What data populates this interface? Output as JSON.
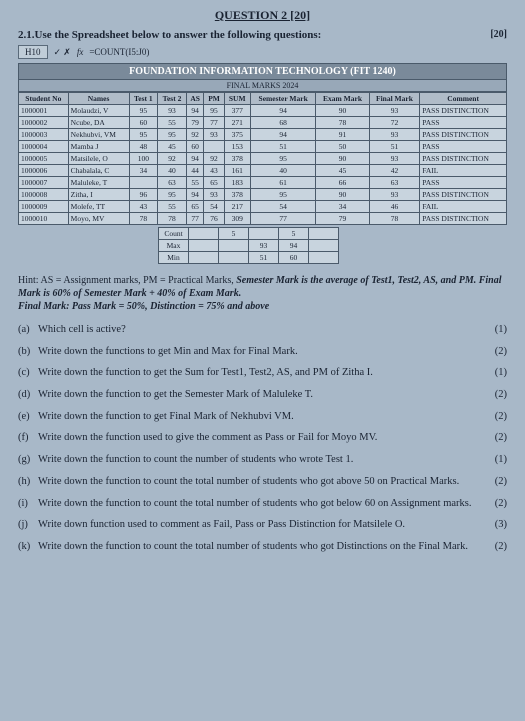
{
  "header": {
    "title": "QUESTION 2 [20]",
    "sub": "2.1.Use the Spreadsheet below to answer the following questions:",
    "marks": "[20]"
  },
  "formula_bar": {
    "cell": "H10",
    "fx": "fx",
    "formula": "=COUNT(I5:J0)"
  },
  "sheet": {
    "title": "FOUNDATION INFORMATION TECHNOLOGY (FIT 1240)",
    "subtitle": "FINAL MARKS 2024",
    "columns": [
      "Student No",
      "Names",
      "Test 1",
      "Test 2",
      "AS",
      "PM",
      "SUM",
      "Semester Mark",
      "Exam Mark",
      "Final Mark",
      "Comment"
    ],
    "rows": [
      [
        "1000001",
        "Molaudzi, V",
        "95",
        "93",
        "94",
        "95",
        "377",
        "94",
        "90",
        "93",
        "PASS DISTINCTION"
      ],
      [
        "1000002",
        "Ncube, DA",
        "60",
        "55",
        "79",
        "77",
        "271",
        "68",
        "78",
        "72",
        "PASS"
      ],
      [
        "1000003",
        "Nekhubvi, VM",
        "95",
        "95",
        "92",
        "93",
        "375",
        "94",
        "91",
        "93",
        "PASS DISTINCTION"
      ],
      [
        "1000004",
        "Mamba J",
        "48",
        "45",
        "60",
        "",
        "153",
        "51",
        "50",
        "51",
        "PASS"
      ],
      [
        "1000005",
        "Matsilele, O",
        "100",
        "92",
        "94",
        "92",
        "378",
        "95",
        "90",
        "93",
        "PASS DISTINCTION"
      ],
      [
        "1000006",
        "Chabalala, C",
        "34",
        "40",
        "44",
        "43",
        "161",
        "40",
        "45",
        "42",
        "FAIL"
      ],
      [
        "1000007",
        "Maluleke, T",
        "",
        "63",
        "55",
        "65",
        "183",
        "61",
        "66",
        "63",
        "PASS"
      ],
      [
        "1000008",
        "Zitha, I",
        "96",
        "95",
        "94",
        "93",
        "378",
        "95",
        "90",
        "93",
        "PASS DISTINCTION"
      ],
      [
        "1000009",
        "Molefe, TT",
        "43",
        "55",
        "65",
        "54",
        "217",
        "54",
        "34",
        "46",
        "FAIL"
      ],
      [
        "1000010",
        "Moyo, MV",
        "78",
        "78",
        "77",
        "76",
        "309",
        "77",
        "79",
        "78",
        "PASS DISTINCTION"
      ]
    ],
    "summary": [
      [
        "Count",
        "",
        "5",
        "",
        "5",
        ""
      ],
      [
        "Max",
        "",
        "",
        "93",
        "94",
        ""
      ],
      [
        "Min",
        "",
        "",
        "51",
        "60",
        ""
      ]
    ]
  },
  "hint": {
    "l1a": "Hint: AS = Assignment marks, PM = Practical Marks, ",
    "l1b": "Semester Mark is the average of Test1, Test2, AS, and PM.  Final Mark is 60% of Semester Mark + 40% of Exam Mark.",
    "l2": "Final Mark:  Pass Mark = 50%, Distinction = 75% and above"
  },
  "questions": [
    {
      "lbl": "(a)",
      "txt": "Which cell is active?",
      "pts": "(1)"
    },
    {
      "lbl": "(b)",
      "txt": "Write down the functions to get Min and Max for Final Mark.",
      "pts": "(2)"
    },
    {
      "lbl": "(c)",
      "txt": "Write down the function to get the Sum for Test1, Test2, AS, and PM of Zitha I.",
      "pts": "(1)"
    },
    {
      "lbl": "(d)",
      "txt": "Write down the function to get the Semester Mark of Maluleke T.",
      "pts": "(2)"
    },
    {
      "lbl": "(e)",
      "txt": "Write down the function to get Final Mark of Nekhubvi VM.",
      "pts": "(2)"
    },
    {
      "lbl": "(f)",
      "txt": "Write down the function used to give the comment as Pass or Fail for Moyo MV.",
      "pts": "(2)"
    },
    {
      "lbl": "(g)",
      "txt": "Write down the function to count the number of students who wrote Test 1.",
      "pts": "(1)"
    },
    {
      "lbl": "(h)",
      "txt": "Write down the function to count the total number of students who got above 50 on Practical Marks.",
      "pts": "(2)"
    },
    {
      "lbl": "(i)",
      "txt": "Write down the function to count the total number of students who got below 60 on Assignment marks.",
      "pts": "(2)"
    },
    {
      "lbl": "(j)",
      "txt": "Write down function used to comment as Fail, Pass or Pass Distinction for Matsilele O.",
      "pts": "(3)"
    },
    {
      "lbl": "(k)",
      "txt": "Write down the function to count the total number of students who got Distinctions on the Final Mark.",
      "pts": "(2)"
    }
  ]
}
